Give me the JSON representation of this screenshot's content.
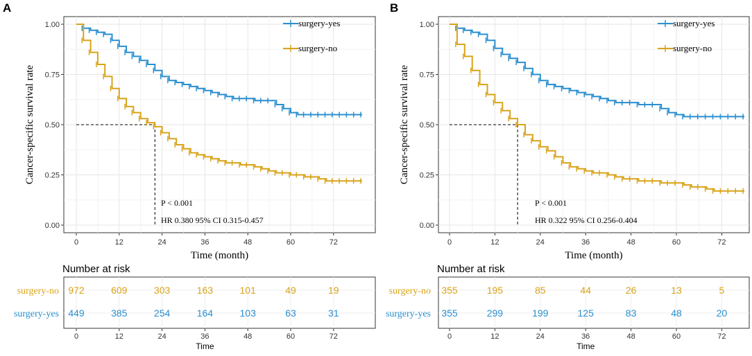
{
  "colors": {
    "surgery_yes": "#2a8fcf",
    "surgery_no": "#d9a31a"
  },
  "chart_data": [
    {
      "type": "line",
      "panel": "A",
      "xlabel": "Time (month)",
      "ylabel": "Cancer-specific survival rate",
      "xlim": [
        0,
        80
      ],
      "ylim": [
        0,
        1
      ],
      "xticks": [
        0,
        12,
        24,
        36,
        48,
        60,
        72
      ],
      "yticks": [
        "0.00",
        "0.25",
        "0.50",
        "0.75",
        "1.00"
      ],
      "legend": [
        "surgery-yes",
        "surgery-no"
      ],
      "annotations": [
        "P < 0.001",
        "HR 0.380 95% CI 0.315-0.457"
      ],
      "median_survival_no": 22,
      "series": [
        {
          "name": "surgery-yes",
          "color_key": "surgery_yes",
          "x": [
            0,
            2,
            4,
            6,
            8,
            10,
            12,
            14,
            16,
            18,
            20,
            22,
            24,
            26,
            28,
            30,
            32,
            34,
            36,
            38,
            40,
            42,
            44,
            46,
            48,
            50,
            52,
            54,
            56,
            58,
            60,
            62,
            64,
            66,
            68,
            70,
            72,
            74,
            76,
            78,
            80
          ],
          "y": [
            1.0,
            0.98,
            0.97,
            0.96,
            0.95,
            0.92,
            0.89,
            0.86,
            0.84,
            0.82,
            0.8,
            0.77,
            0.74,
            0.72,
            0.71,
            0.7,
            0.69,
            0.68,
            0.67,
            0.66,
            0.65,
            0.64,
            0.63,
            0.63,
            0.63,
            0.62,
            0.62,
            0.62,
            0.6,
            0.58,
            0.56,
            0.55,
            0.55,
            0.55,
            0.55,
            0.55,
            0.55,
            0.55,
            0.55,
            0.55,
            0.55
          ]
        },
        {
          "name": "surgery-no",
          "color_key": "surgery_no",
          "x": [
            0,
            2,
            4,
            6,
            8,
            10,
            12,
            14,
            16,
            18,
            20,
            22,
            24,
            26,
            28,
            30,
            32,
            34,
            36,
            38,
            40,
            42,
            44,
            46,
            48,
            50,
            52,
            54,
            56,
            58,
            60,
            62,
            64,
            66,
            68,
            70,
            72,
            74,
            76,
            78,
            80
          ],
          "y": [
            1.0,
            0.92,
            0.86,
            0.8,
            0.74,
            0.68,
            0.63,
            0.59,
            0.56,
            0.53,
            0.51,
            0.49,
            0.46,
            0.43,
            0.4,
            0.38,
            0.36,
            0.35,
            0.34,
            0.33,
            0.32,
            0.31,
            0.31,
            0.3,
            0.3,
            0.29,
            0.28,
            0.27,
            0.26,
            0.26,
            0.25,
            0.25,
            0.24,
            0.24,
            0.23,
            0.22,
            0.22,
            0.22,
            0.22,
            0.22,
            0.22
          ]
        }
      ],
      "risk_table": {
        "title": "Number at risk",
        "xlabel": "Time",
        "times": [
          0,
          12,
          24,
          36,
          48,
          60,
          72
        ],
        "rows": [
          {
            "label": "surgery-no",
            "color_key": "surgery_no",
            "values": [
              "972",
              "609",
              "303",
              "163",
              "101",
              "49",
              "19"
            ]
          },
          {
            "label": "surgery-yes",
            "color_key": "surgery_yes",
            "values": [
              "449",
              "385",
              "254",
              "164",
              "103",
              "63",
              "31"
            ]
          }
        ]
      }
    },
    {
      "type": "line",
      "panel": "B",
      "xlabel": "Time (month)",
      "ylabel": "Cancer-specific survival rate",
      "xlim": [
        0,
        80
      ],
      "ylim": [
        0,
        1
      ],
      "xticks": [
        0,
        12,
        24,
        36,
        48,
        60,
        72
      ],
      "yticks": [
        "0.00",
        "0.25",
        "0.50",
        "0.75",
        "1.00"
      ],
      "legend": [
        "surgery-yes",
        "surgery-no"
      ],
      "annotations": [
        "P < 0.001",
        "HR 0.322 95% CI 0.256-0.404"
      ],
      "median_survival_no": 18,
      "series": [
        {
          "name": "surgery-yes",
          "color_key": "surgery_yes",
          "x": [
            0,
            2,
            4,
            6,
            8,
            10,
            12,
            14,
            16,
            18,
            20,
            22,
            24,
            26,
            28,
            30,
            32,
            34,
            36,
            38,
            40,
            42,
            44,
            46,
            48,
            50,
            52,
            54,
            56,
            58,
            60,
            62,
            64,
            66,
            68,
            70,
            72,
            74,
            76,
            78
          ],
          "y": [
            1.0,
            0.98,
            0.97,
            0.96,
            0.95,
            0.92,
            0.88,
            0.85,
            0.83,
            0.81,
            0.78,
            0.75,
            0.72,
            0.7,
            0.69,
            0.68,
            0.67,
            0.66,
            0.65,
            0.64,
            0.63,
            0.62,
            0.61,
            0.61,
            0.61,
            0.6,
            0.6,
            0.6,
            0.58,
            0.56,
            0.55,
            0.54,
            0.54,
            0.54,
            0.54,
            0.54,
            0.54,
            0.54,
            0.54,
            0.54
          ]
        },
        {
          "name": "surgery-no",
          "color_key": "surgery_no",
          "x": [
            0,
            2,
            4,
            6,
            8,
            10,
            12,
            14,
            16,
            18,
            20,
            22,
            24,
            26,
            28,
            30,
            32,
            34,
            36,
            38,
            40,
            42,
            44,
            46,
            48,
            50,
            52,
            54,
            56,
            58,
            60,
            62,
            64,
            66,
            68,
            70,
            72,
            74,
            76,
            78
          ],
          "y": [
            1.0,
            0.9,
            0.84,
            0.77,
            0.7,
            0.65,
            0.61,
            0.57,
            0.53,
            0.5,
            0.45,
            0.42,
            0.39,
            0.37,
            0.34,
            0.31,
            0.29,
            0.28,
            0.27,
            0.26,
            0.26,
            0.25,
            0.24,
            0.23,
            0.23,
            0.22,
            0.22,
            0.22,
            0.21,
            0.21,
            0.21,
            0.2,
            0.19,
            0.19,
            0.18,
            0.17,
            0.17,
            0.17,
            0.17,
            0.17
          ]
        }
      ],
      "risk_table": {
        "title": "Number at risk",
        "xlabel": "Time",
        "times": [
          0,
          12,
          24,
          36,
          48,
          60,
          72
        ],
        "rows": [
          {
            "label": "surgery-no",
            "color_key": "surgery_no",
            "values": [
              "355",
              "195",
              "85",
              "44",
              "26",
              "13",
              "5"
            ]
          },
          {
            "label": "surgery-yes",
            "color_key": "surgery_yes",
            "values": [
              "355",
              "299",
              "199",
              "125",
              "83",
              "48",
              "20"
            ]
          }
        ]
      }
    }
  ]
}
